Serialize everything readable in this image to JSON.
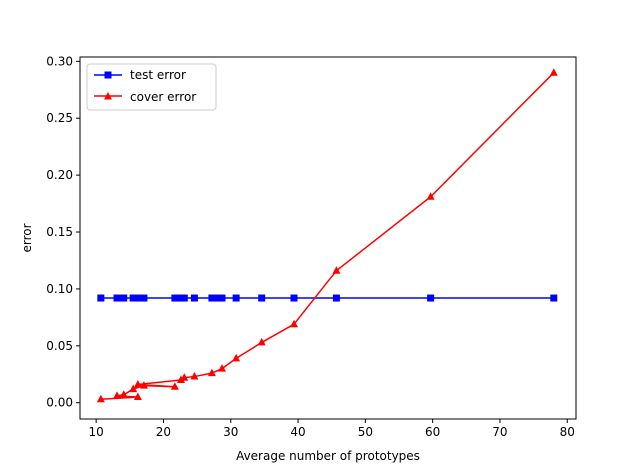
{
  "chart_data": {
    "type": "line",
    "title": "",
    "xlabel": "Average number of prototypes",
    "ylabel": "error",
    "xlim": [
      7.6,
      81.3
    ],
    "ylim": [
      -0.0143,
      0.3038
    ],
    "xticks": [
      10,
      20,
      30,
      40,
      50,
      60,
      70,
      80
    ],
    "yticks": [
      0.0,
      0.05,
      0.1,
      0.15,
      0.2,
      0.25,
      0.3
    ],
    "grid": false,
    "legend_position": "top-left",
    "series": [
      {
        "name": "test error",
        "color": "#0000ff",
        "marker": "square",
        "x": [
          10.7,
          13.1,
          14.1,
          15.5,
          16.2,
          17.1,
          21.7,
          22.6,
          23.1,
          24.6,
          27.2,
          28.1,
          28.7,
          30.8,
          34.6,
          39.4,
          45.7,
          59.7,
          78.0
        ],
        "y": [
          0.092,
          0.092,
          0.092,
          0.092,
          0.092,
          0.092,
          0.092,
          0.092,
          0.092,
          0.092,
          0.092,
          0.092,
          0.092,
          0.092,
          0.092,
          0.092,
          0.092,
          0.092,
          0.092
        ]
      },
      {
        "name": "cover error",
        "color": "#ff0000",
        "marker": "triangle",
        "x": [
          10.7,
          16.2,
          13.1,
          14.1,
          15.5,
          17.1,
          21.7,
          16.2,
          22.6,
          23.1,
          24.6,
          27.2,
          28.7,
          30.8,
          34.6,
          39.4,
          45.7,
          59.7,
          78.0
        ],
        "y": [
          0.003,
          0.005,
          0.006,
          0.007,
          0.012,
          0.015,
          0.014,
          0.016,
          0.02,
          0.022,
          0.023,
          0.026,
          0.03,
          0.039,
          0.053,
          0.069,
          0.116,
          0.181,
          0.29
        ]
      }
    ]
  }
}
